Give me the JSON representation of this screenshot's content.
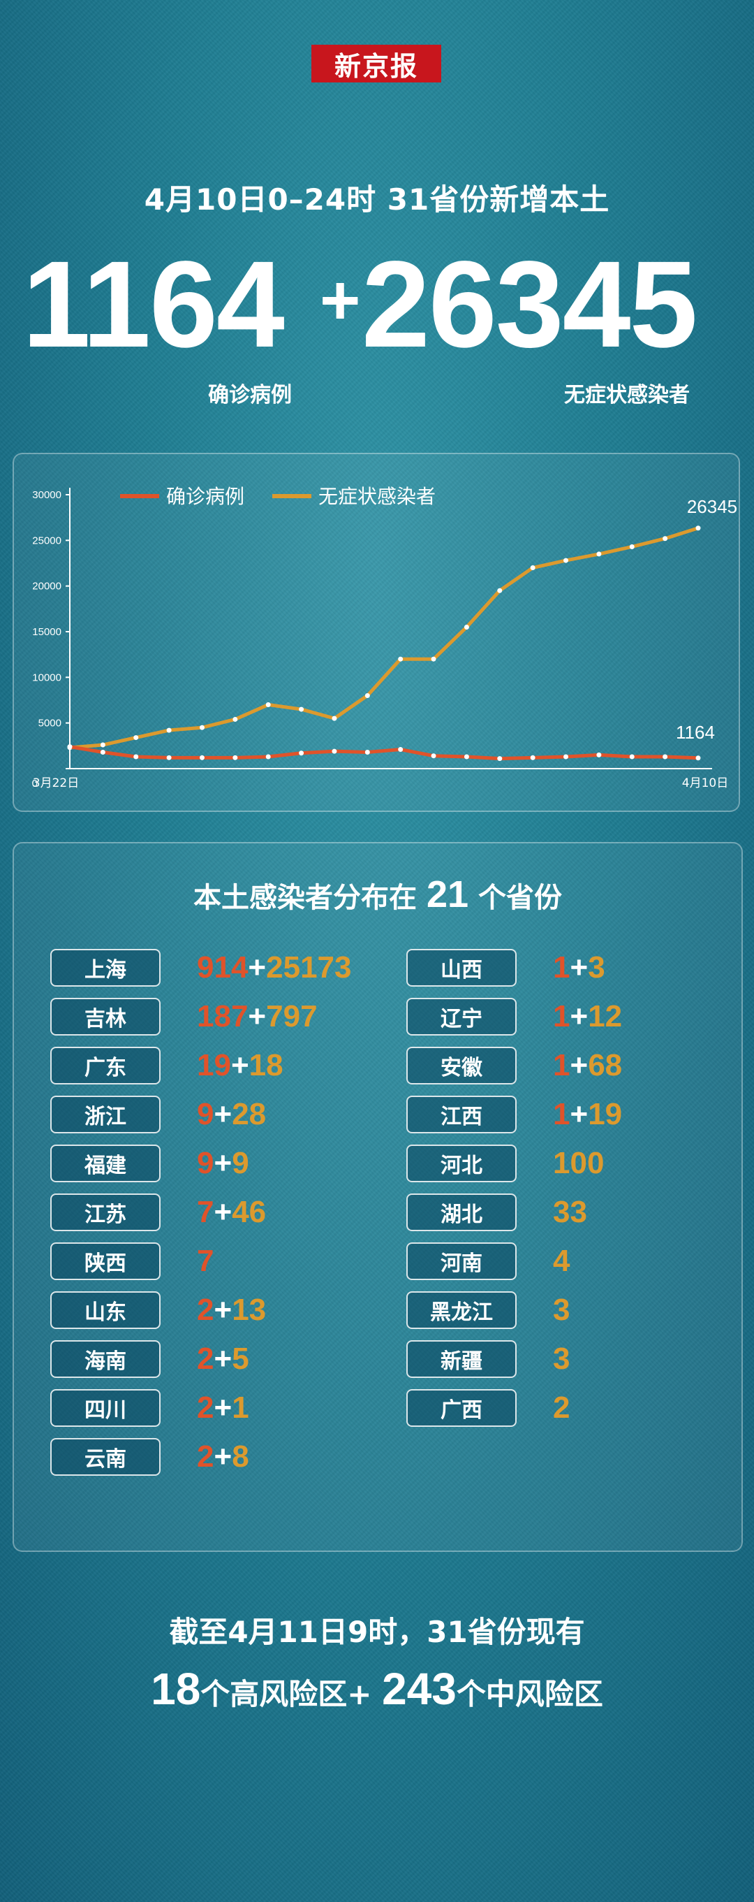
{
  "brand": {
    "logo_text": "新京报"
  },
  "header": {
    "subtitle": "4月10日0–24时    31省份新增本土",
    "confirmed_total": "1164",
    "plus": "+",
    "asymptomatic_total": "26345",
    "confirmed_label": "确诊病例",
    "asymptomatic_label": "无症状感染者"
  },
  "colors": {
    "confirmed": "#e0532a",
    "asymptomatic": "#dc9a2e",
    "background": "#1f7d92"
  },
  "chart_data": {
    "type": "line",
    "x": [
      "3月22日",
      "3月23日",
      "3月24日",
      "3月25日",
      "3月26日",
      "3月27日",
      "3月28日",
      "3月29日",
      "3月30日",
      "3月31日",
      "4月1日",
      "4月2日",
      "4月3日",
      "4月4日",
      "4月5日",
      "4月6日",
      "4月7日",
      "4月8日",
      "4月9日",
      "4月10日"
    ],
    "x_tick_labels": [
      "3月22日",
      "4月10日"
    ],
    "series": [
      {
        "name": "确诊病例",
        "color": "#e0532a",
        "values": [
          2400,
          1800,
          1300,
          1200,
          1200,
          1200,
          1300,
          1700,
          1900,
          1800,
          2100,
          1400,
          1300,
          1100,
          1200,
          1300,
          1500,
          1300,
          1300,
          1164
        ]
      },
      {
        "name": "无症状感染者",
        "color": "#dc9a2e",
        "values": [
          2300,
          2600,
          3400,
          4200,
          4500,
          5400,
          7000,
          6500,
          5500,
          8000,
          12000,
          12000,
          15500,
          19500,
          22000,
          22800,
          23500,
          24300,
          25200,
          26345
        ]
      }
    ],
    "ylim": [
      0,
      30000
    ],
    "yticks": [
      0,
      5000,
      10000,
      15000,
      20000,
      25000,
      30000
    ],
    "end_labels": {
      "asymptomatic": "26345",
      "confirmed": "1164"
    },
    "legend": "top-left"
  },
  "distribution": {
    "title_prefix": "本土感染者分布在",
    "title_count": "21",
    "title_suffix": "个省份",
    "left": [
      {
        "name": "上海",
        "confirmed": "914",
        "plus": "+",
        "asymptomatic": "25173"
      },
      {
        "name": "吉林",
        "confirmed": "187",
        "plus": "+",
        "asymptomatic": "797"
      },
      {
        "name": "广东",
        "confirmed": "19",
        "plus": "+",
        "asymptomatic": "18"
      },
      {
        "name": "浙江",
        "confirmed": "9",
        "plus": "+",
        "asymptomatic": "28"
      },
      {
        "name": "福建",
        "confirmed": "9",
        "plus": "+",
        "asymptomatic": "9"
      },
      {
        "name": "江苏",
        "confirmed": "7",
        "plus": "+",
        "asymptomatic": "46"
      },
      {
        "name": "陕西",
        "confirmed": "7",
        "plus": "",
        "asymptomatic": ""
      },
      {
        "name": "山东",
        "confirmed": "2",
        "plus": "+",
        "asymptomatic": "13"
      },
      {
        "name": "海南",
        "confirmed": "2",
        "plus": "+",
        "asymptomatic": "5"
      },
      {
        "name": "四川",
        "confirmed": "2",
        "plus": "+",
        "asymptomatic": "1"
      },
      {
        "name": "云南",
        "confirmed": "2",
        "plus": "+",
        "asymptomatic": "8"
      }
    ],
    "right": [
      {
        "name": "山西",
        "confirmed": "1",
        "plus": "+",
        "asymptomatic": "3"
      },
      {
        "name": "辽宁",
        "confirmed": "1",
        "plus": "+",
        "asymptomatic": "12"
      },
      {
        "name": "安徽",
        "confirmed": "1",
        "plus": "+",
        "asymptomatic": "68"
      },
      {
        "name": "江西",
        "confirmed": "1",
        "plus": "+",
        "asymptomatic": "19"
      },
      {
        "name": "河北",
        "confirmed": "",
        "plus": "",
        "asymptomatic": "100"
      },
      {
        "name": "湖北",
        "confirmed": "",
        "plus": "",
        "asymptomatic": "33"
      },
      {
        "name": "河南",
        "confirmed": "",
        "plus": "",
        "asymptomatic": "4"
      },
      {
        "name": "黑龙江",
        "confirmed": "",
        "plus": "",
        "asymptomatic": "3"
      },
      {
        "name": "新疆",
        "confirmed": "",
        "plus": "",
        "asymptomatic": "3"
      },
      {
        "name": "广西",
        "confirmed": "",
        "plus": "",
        "asymptomatic": "2"
      }
    ]
  },
  "footer": {
    "line1": "截至4月11日9时，31省份现有",
    "high_count": "18",
    "high_label": "个高风险区+",
    "mid_count": "243",
    "mid_label": "个中风险区"
  }
}
